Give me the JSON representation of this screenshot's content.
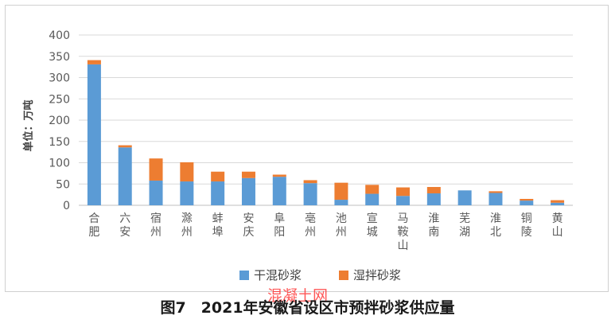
{
  "caption": "图7　2021年安徽省设区市预拌砂浆供应量",
  "watermark": "混凝土网",
  "chart_data": {
    "type": "bar",
    "stacked": true,
    "ylabel": "单位：万吨",
    "ylim": [
      0,
      400
    ],
    "yticks": [
      0,
      50,
      100,
      150,
      200,
      250,
      300,
      350,
      400
    ],
    "grid": true,
    "legend_position": "bottom",
    "categories": [
      "合肥",
      "六安",
      "宿州",
      "滁州",
      "蚌埠",
      "安庆",
      "阜阳",
      "亳州",
      "池州",
      "宣城",
      "马鞍山",
      "淮南",
      "芜湖",
      "淮北",
      "铜陵",
      "黄山"
    ],
    "series": [
      {
        "name": "干混砂浆",
        "color": "#5b9bd5",
        "values": [
          331,
          136,
          58,
          56,
          56,
          64,
          67,
          52,
          13,
          27,
          22,
          28,
          35,
          29,
          11,
          6
        ]
      },
      {
        "name": "湿拌砂浆",
        "color": "#ed7d31",
        "values": [
          10,
          5,
          52,
          45,
          23,
          15,
          5,
          7,
          40,
          21,
          20,
          15,
          0,
          4,
          4,
          6
        ]
      }
    ]
  }
}
